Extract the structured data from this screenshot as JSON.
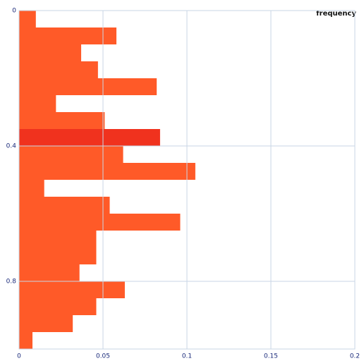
{
  "chart_data": {
    "type": "histogram",
    "orientation": "horizontal",
    "title": "frequency",
    "bins": [
      0,
      0.05,
      0.1,
      0.15,
      0.2,
      0.25,
      0.3,
      0.35,
      0.4,
      0.45,
      0.5,
      0.55,
      0.6,
      0.65,
      0.7,
      0.75,
      0.8,
      0.85,
      0.9,
      0.95,
      1
    ],
    "values": [
      0.01,
      0.058,
      0.037,
      0.047,
      0.082,
      0.022,
      0.051,
      0.084,
      0.062,
      0.105,
      0.015,
      0.054,
      0.096,
      0.046,
      0.046,
      0.036,
      0.063,
      0.046,
      0.032,
      0.008
    ],
    "color": "#ff5a28",
    "highlight_bin": 7,
    "highlight_color": "#f0321e",
    "xlim": [
      0,
      0.2
    ],
    "xticks": [
      0,
      0.05,
      0.1,
      0.15,
      0.2
    ],
    "ylim": [
      0,
      1
    ],
    "yticks": [
      0,
      0.4,
      0.8
    ],
    "grid": true
  }
}
